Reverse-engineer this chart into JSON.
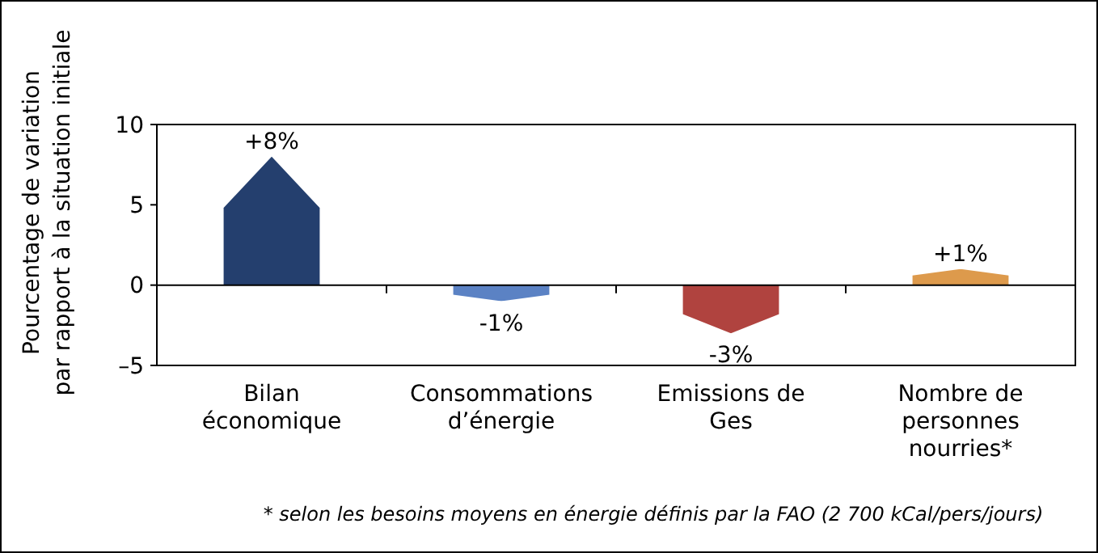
{
  "chart_data": {
    "type": "bar",
    "ylabel": "Pourcentage de variation\npar rapport à la situation initiale",
    "categories": [
      "Bilan\néconomique",
      "Consommations\nd’énergie",
      "Emissions de\nGes",
      "Nombre de\npersonnes\nnourries*"
    ],
    "values": [
      8,
      -1,
      -3,
      1
    ],
    "colors": [
      "#243f6e",
      "#5b82c4",
      "#b0433f",
      "#dd9a4c"
    ],
    "value_labels": [
      "+8%",
      "-1%",
      "-3%",
      "+1%"
    ],
    "ylim": [
      -5,
      10
    ],
    "yticks": [
      {
        "value": -5,
        "label": "–5"
      },
      0,
      5,
      10
    ],
    "annotations": [
      "* selon les besoins moyens en énergie définis par la FAO (2 700 kCal/pers/jours)"
    ]
  }
}
